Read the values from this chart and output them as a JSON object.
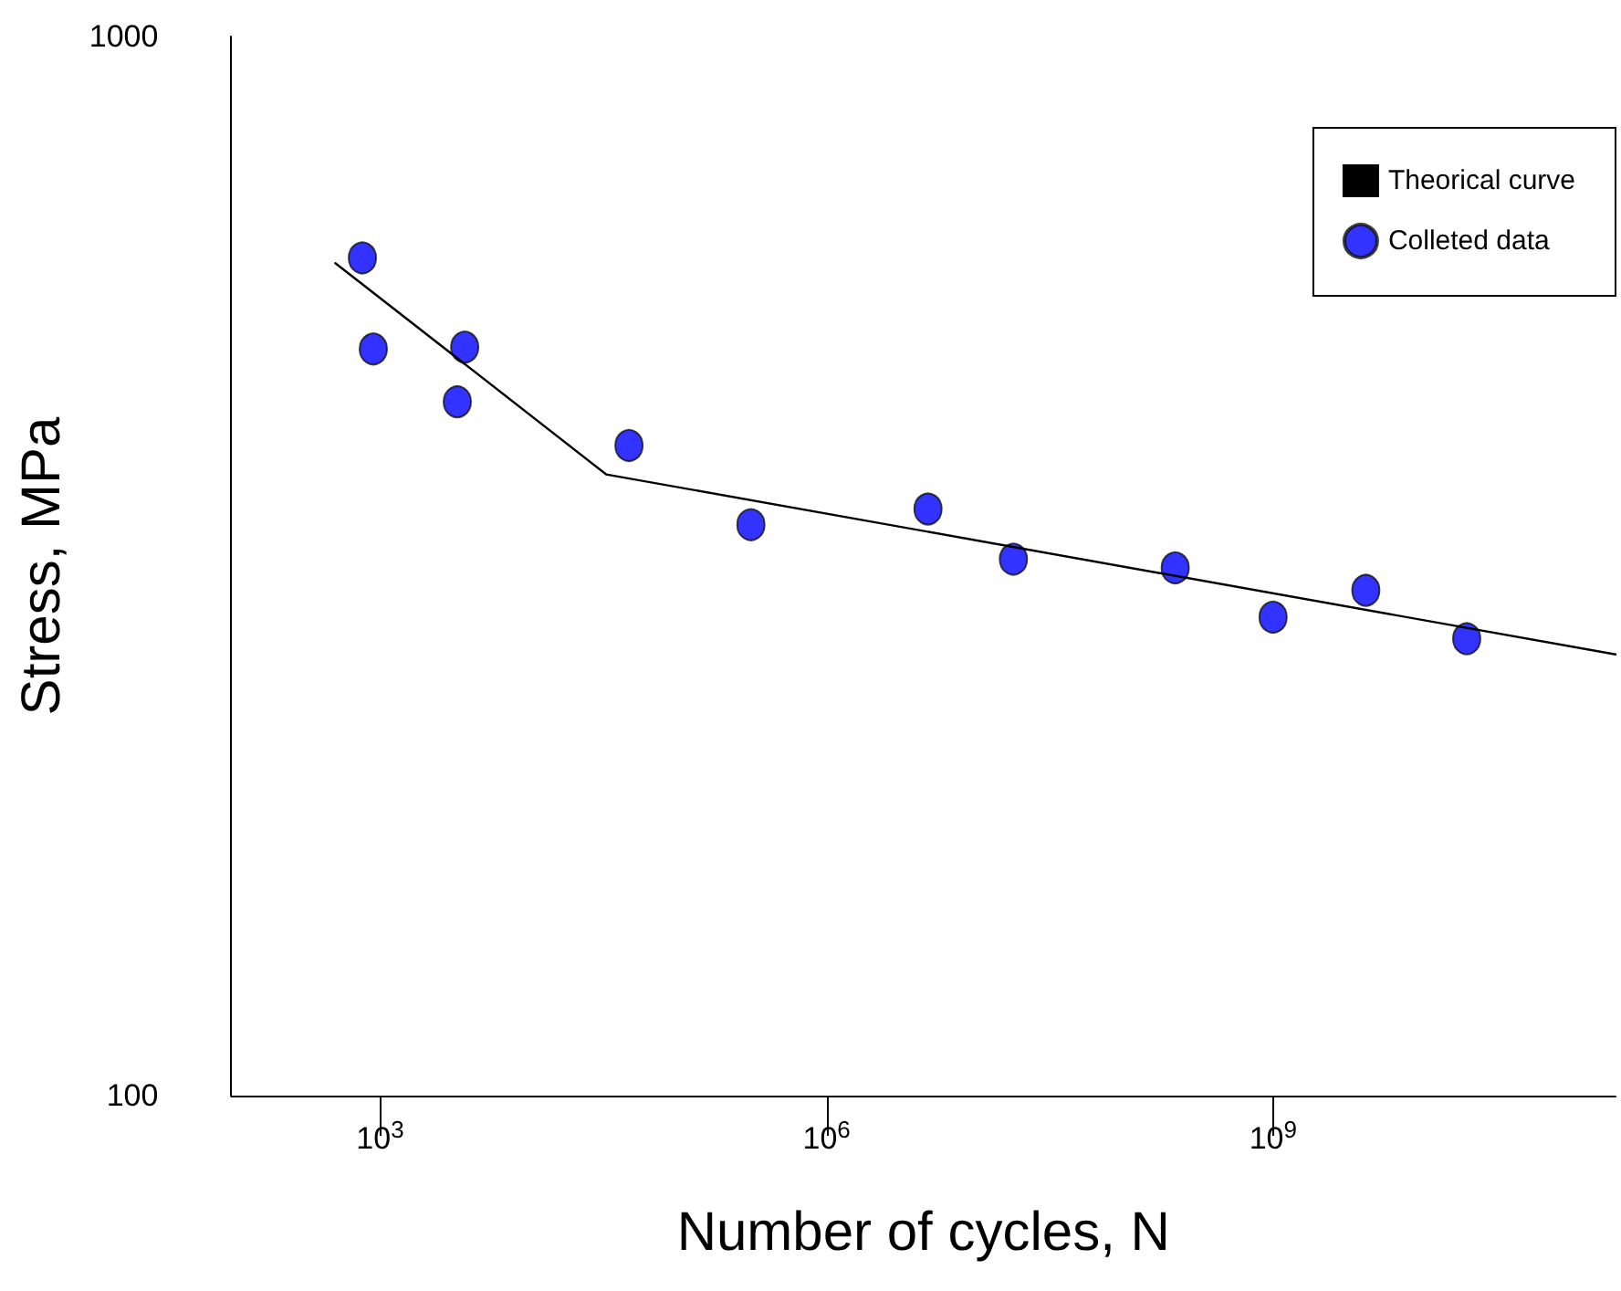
{
  "chart_data": {
    "type": "scatter",
    "xlabel": "Number of cycles, N",
    "ylabel": "Stress, MPa",
    "log": "xy",
    "grid": false,
    "legend": "top right",
    "xlim": [
      100,
      200000000000
    ],
    "ylim": [
      100,
      1000
    ],
    "xticks": [
      {
        "value": 1000,
        "label": "10$^{3}$"
      },
      {
        "value": 1000000,
        "label": "10$^{6}$"
      },
      {
        "value": 1000000000,
        "label": "10$^{9}$"
      }
    ],
    "yticks": [
      100,
      1000
    ],
    "series": [
      {
        "name": "Theorical curve",
        "type": "line",
        "color": "#000000",
        "marker": "none",
        "line_style": "solid",
        "x": [
          500,
          33000,
          200000000000
        ],
        "values": [
          611,
          386,
          261
        ]
      },
      {
        "name": "Colleted data",
        "color": "#0000ff",
        "marker": "circle",
        "x": [
          760,
          900,
          3300,
          3700,
          47000,
          310000,
          4800000,
          18000000,
          220000000,
          1000000000,
          4200000000,
          20000000000
        ],
        "values": [
          618,
          507,
          452,
          509,
          411,
          346,
          358,
          321,
          315,
          283,
          300,
          270
        ]
      }
    ]
  }
}
